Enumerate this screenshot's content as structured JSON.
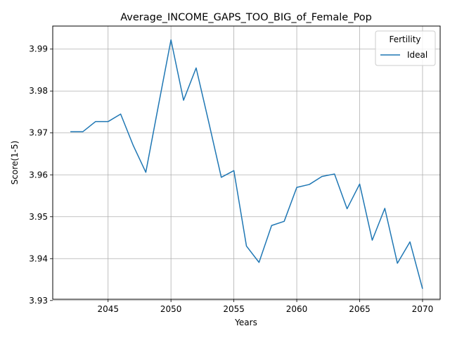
{
  "chart_data": {
    "type": "line",
    "title": "Average_INCOME_GAPS_TOO_BIG_of_Female_Pop",
    "xlabel": "Years",
    "ylabel": "Score(1-5)",
    "xlim": [
      2040.6,
      2071.4
    ],
    "ylim": [
      3.9303,
      3.9955
    ],
    "xticks": [
      2045,
      2050,
      2055,
      2060,
      2065,
      2070
    ],
    "yticks": [
      3.93,
      3.94,
      3.95,
      3.96,
      3.97,
      3.98,
      3.99
    ],
    "ytick_labels": [
      "3.93",
      "3.94",
      "3.95",
      "3.96",
      "3.97",
      "3.98",
      "3.99"
    ],
    "grid": true,
    "legend": {
      "title": "Fertility",
      "placement": "top-right"
    },
    "x": [
      2042,
      2043,
      2044,
      2045,
      2046,
      2047,
      2048,
      2049,
      2050,
      2051,
      2052,
      2053,
      2054,
      2055,
      2056,
      2057,
      2058,
      2059,
      2060,
      2061,
      2062,
      2063,
      2064,
      2065,
      2066,
      2067,
      2068,
      2069,
      2070
    ],
    "series": [
      {
        "name": "Ideal",
        "color": "#1f77b4",
        "values": [
          3.9703,
          3.9703,
          3.9727,
          3.9727,
          3.9745,
          3.967,
          3.9606,
          3.9765,
          3.9922,
          3.9778,
          3.9855,
          3.9726,
          3.9594,
          3.961,
          3.943,
          3.9391,
          3.9479,
          3.9489,
          3.957,
          3.9577,
          3.9596,
          3.9602,
          3.9519,
          3.9578,
          3.9444,
          3.952,
          3.9389,
          3.944,
          3.9328
        ]
      }
    ]
  }
}
